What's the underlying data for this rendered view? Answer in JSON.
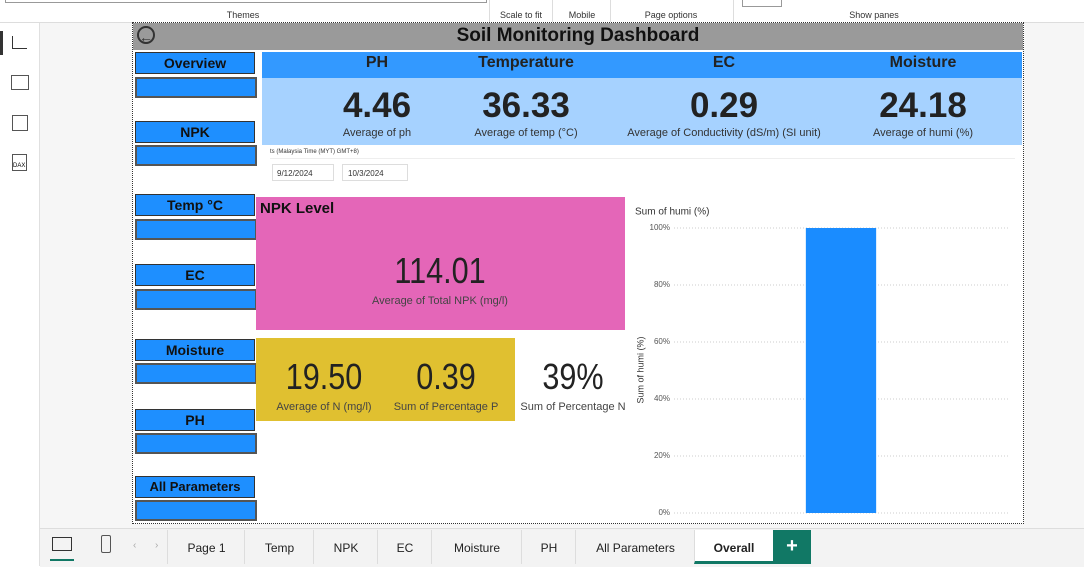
{
  "ribbon": {
    "groups": [
      "Themes",
      "Scale to fit",
      "Mobile",
      "Page options",
      "Show panes"
    ]
  },
  "report": {
    "title": "Soil Monitoring Dashboard",
    "nav": [
      "Overview",
      "NPK",
      "Temp °C",
      "EC",
      "Moisture",
      "PH",
      "All Parameters"
    ],
    "kpi_headers": [
      "PH",
      "Temperature",
      "EC",
      "Moisture"
    ],
    "kpis": [
      {
        "value": "4.46",
        "label": "Average of ph"
      },
      {
        "value": "36.33",
        "label": "Average of temp (°C)"
      },
      {
        "value": "0.29",
        "label": "Average of Conductivity (dS/m) (SI unit)"
      },
      {
        "value": "24.18",
        "label": "Average of humi (%)"
      }
    ],
    "slicer": {
      "label": "ts (Malaysia Time (MYT) GMT+8)",
      "start": "9/12/2024",
      "end": "10/3/2024"
    },
    "npk": {
      "title": "NPK Level",
      "value": "114.01",
      "label": "Average of Total NPK (mg/l)"
    },
    "cards": [
      {
        "value": "19.50",
        "label": "Average of N (mg/l)"
      },
      {
        "value": "0.39",
        "label": "Sum of Percentage P"
      },
      {
        "value": "39%",
        "label": "Sum of Percentage N"
      }
    ],
    "chart_data": {
      "type": "bar",
      "title": "Sum of humi (%)",
      "y_label": "Sum of humi (%)",
      "categories": [
        null
      ],
      "values": [
        100
      ],
      "color": "#1a8cff",
      "ylim": [
        0,
        100
      ],
      "yticks": [
        {
          "value": 0,
          "label": "0%"
        },
        {
          "value": 20,
          "label": "20%"
        },
        {
          "value": 40,
          "label": "40%"
        },
        {
          "value": 60,
          "label": "60%"
        },
        {
          "value": 80,
          "label": "80%"
        },
        {
          "value": 100,
          "label": "100%"
        }
      ],
      "grid": true
    }
  },
  "tabs": [
    "Page 1",
    "Temp",
    "NPK",
    "EC",
    "Moisture",
    "PH",
    "All Parameters",
    "Overall"
  ]
}
